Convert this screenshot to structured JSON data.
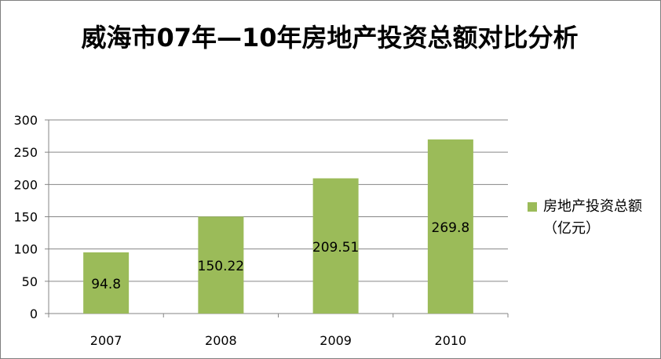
{
  "chart_data": {
    "type": "bar",
    "title": "威海市07年—10年房地产投资总额对比分析",
    "categories": [
      "2007",
      "2008",
      "2009",
      "2010"
    ],
    "series": [
      {
        "name": "房地产投资总额（亿元）",
        "values": [
          94.8,
          150.22,
          209.51,
          269.8
        ],
        "color": "#9bbb59"
      }
    ],
    "data_labels": [
      "94.8",
      "150.22",
      "209.51",
      "269.8"
    ],
    "ylim": [
      0,
      300
    ],
    "yticks": [
      0,
      50,
      100,
      150,
      200,
      250,
      300
    ],
    "xlabel": "",
    "ylabel": "",
    "grid": true,
    "legend": "right"
  }
}
